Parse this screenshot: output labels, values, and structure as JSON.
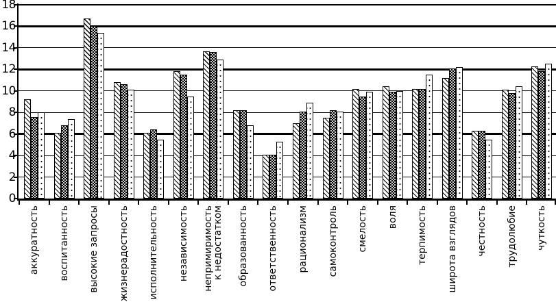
{
  "chart_data": {
    "type": "bar",
    "title": "",
    "xlabel": "",
    "ylabel": "",
    "legend": "none",
    "grid": "horizontal",
    "ink_color": "#000000",
    "background_color": "#ffffff",
    "ylim": [
      0,
      18
    ],
    "yticks": [
      0,
      2,
      4,
      6,
      8,
      10,
      12,
      14,
      16,
      18
    ],
    "bold_gridlines": [
      6,
      12,
      16
    ],
    "categories": [
      "аккуратность",
      "воспитанность",
      "высокие запросы",
      "жизнерадостность",
      "исполнительность",
      "независимость",
      "непримиримость\nк недостатком",
      "образованность",
      "ответственность",
      "рационализм",
      "самоконтроль",
      "смелость",
      "воля",
      "терпимость",
      "широта взглядов",
      "честность",
      "трудолюбие",
      "чуткость"
    ],
    "series": [
      {
        "name": "series-1",
        "pattern": "diagonal-hatch",
        "values": [
          9.2,
          6.1,
          16.7,
          10.8,
          6.1,
          11.8,
          13.7,
          8.2,
          4.1,
          7.0,
          7.5,
          10.2,
          10.4,
          10.2,
          11.2,
          6.3,
          10.1,
          12.3
        ]
      },
      {
        "name": "series-2",
        "pattern": "black-with-white-dots",
        "values": [
          7.6,
          6.8,
          16.0,
          10.6,
          6.4,
          11.5,
          13.6,
          8.2,
          4.1,
          8.1,
          8.2,
          9.5,
          9.9,
          10.2,
          12.1,
          6.3,
          9.8,
          11.8
        ]
      },
      {
        "name": "series-3",
        "pattern": "white-with-sparse-dots",
        "values": [
          8.0,
          7.4,
          15.4,
          10.1,
          5.5,
          9.5,
          12.9,
          6.8,
          5.3,
          8.9,
          8.1,
          9.9,
          10.0,
          11.5,
          12.2,
          5.5,
          10.4,
          12.5
        ]
      }
    ]
  }
}
